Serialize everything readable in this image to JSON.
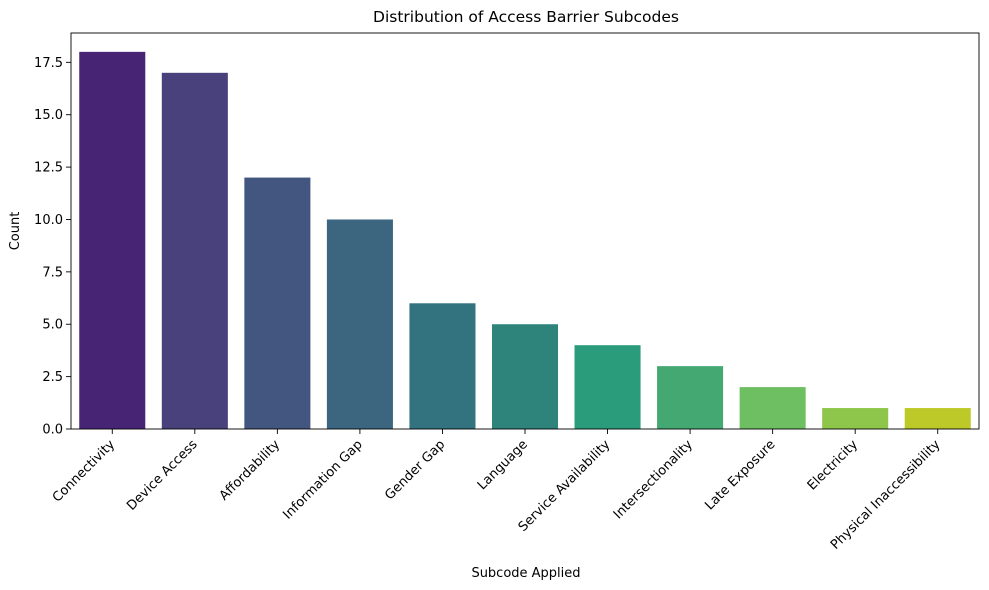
{
  "chart_data": {
    "type": "bar",
    "title": "Distribution of Access Barrier Subcodes",
    "xlabel": "Subcode Applied",
    "ylabel": "Count",
    "categories": [
      "Connectivity",
      "Device Access",
      "Affordability",
      "Information Gap",
      "Gender Gap",
      "Language",
      "Service Availability",
      "Intersectionality",
      "Late Exposure",
      "Electricity",
      "Physical Inaccessibility"
    ],
    "values": [
      18,
      17,
      12,
      10,
      6,
      5,
      4,
      3,
      2,
      1,
      1
    ],
    "ylim": [
      0,
      18.9
    ],
    "yticks": [
      0.0,
      2.5,
      5.0,
      7.5,
      10.0,
      12.5,
      15.0,
      17.5
    ],
    "ytick_labels": [
      "0.0",
      "2.5",
      "5.0",
      "7.5",
      "10.0",
      "12.5",
      "15.0",
      "17.5"
    ],
    "grid": false,
    "legend": "none",
    "palette": "viridis",
    "colors": [
      "#482475",
      "#48417b",
      "#42567f",
      "#3c6580",
      "#33727f",
      "#2e837b",
      "#2a9c7c",
      "#44a873",
      "#6ebf61",
      "#8dc64a",
      "#bcc928"
    ]
  }
}
